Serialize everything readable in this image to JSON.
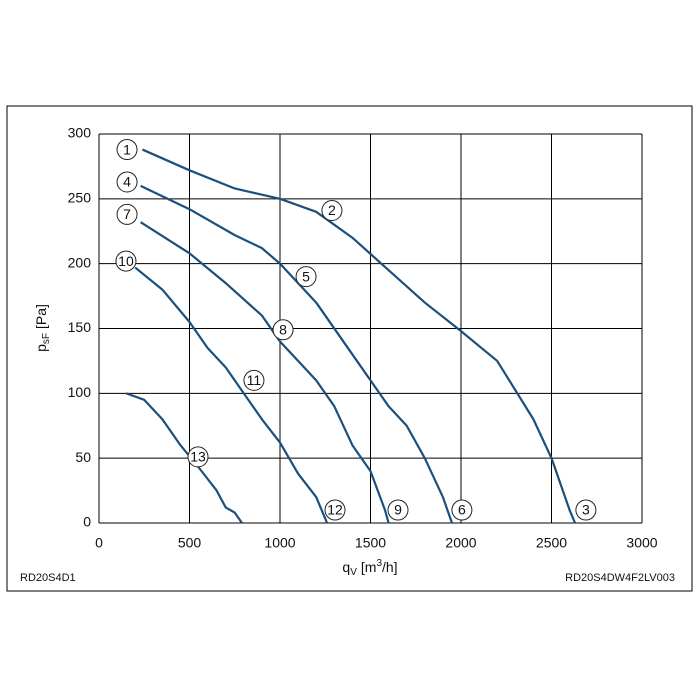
{
  "chart_data": {
    "type": "line",
    "ylabel": [
      "p",
      "sF",
      "[Pa]"
    ],
    "xlabel": [
      "q",
      "V",
      "[m",
      "3",
      "/h]"
    ],
    "footnote_left": "RD20S4D1",
    "footnote_right": "RD20S4DW4F2LV003",
    "xlim": [
      0,
      3000
    ],
    "xticks": [
      0,
      500,
      1000,
      1500,
      2000,
      2500,
      3000
    ],
    "ylim": [
      0,
      300
    ],
    "yticks": [
      0,
      50,
      100,
      150,
      200,
      250,
      300
    ],
    "grid": true,
    "series": [
      {
        "color": "#1b4f7c",
        "x": [
          240,
          500,
          750,
          1000,
          1200,
          1400,
          1600,
          1800,
          2000,
          2200,
          2400,
          2500,
          2600,
          2630
        ],
        "values": [
          288,
          272,
          258,
          250,
          240,
          220,
          195,
          170,
          148,
          125,
          80,
          50,
          10,
          0
        ]
      },
      {
        "color": "#1b4f7c",
        "x": [
          230,
          500,
          750,
          900,
          1000,
          1200,
          1400,
          1600,
          1700,
          1800,
          1900,
          1950
        ],
        "values": [
          260,
          242,
          222,
          212,
          200,
          170,
          130,
          90,
          75,
          50,
          20,
          0
        ]
      },
      {
        "color": "#1b4f7c",
        "x": [
          230,
          500,
          700,
          900,
          1000,
          1100,
          1200,
          1300,
          1400,
          1500,
          1580,
          1600
        ],
        "values": [
          232,
          208,
          185,
          160,
          140,
          125,
          110,
          90,
          60,
          40,
          10,
          0
        ]
      },
      {
        "color": "#1b4f7c",
        "x": [
          200,
          350,
          500,
          600,
          700,
          800,
          900,
          1000,
          1100,
          1200,
          1260
        ],
        "values": [
          197,
          180,
          155,
          135,
          120,
          100,
          80,
          62,
          38,
          20,
          0
        ]
      },
      {
        "color": "#1b4f7c",
        "x": [
          150,
          250,
          350,
          450,
          550,
          650,
          700,
          750,
          790
        ],
        "values": [
          100,
          95,
          80,
          60,
          43,
          25,
          12,
          8,
          0
        ]
      }
    ],
    "annotations": [
      {
        "text": "1",
        "x": 155,
        "y": 288
      },
      {
        "text": "2",
        "x": 1287,
        "y": 241
      },
      {
        "text": "3",
        "x": 2690,
        "y": 10
      },
      {
        "text": "4",
        "x": 155,
        "y": 263
      },
      {
        "text": "5",
        "x": 1144,
        "y": 190
      },
      {
        "text": "6",
        "x": 2005,
        "y": 10
      },
      {
        "text": "7",
        "x": 155,
        "y": 238
      },
      {
        "text": "8",
        "x": 1017,
        "y": 149
      },
      {
        "text": "9",
        "x": 1652,
        "y": 10
      },
      {
        "text": "10",
        "x": 149,
        "y": 202
      },
      {
        "text": "11",
        "x": 856,
        "y": 110
      },
      {
        "text": "12",
        "x": 1304,
        "y": 10
      },
      {
        "text": "13",
        "x": 547,
        "y": 51
      }
    ]
  }
}
